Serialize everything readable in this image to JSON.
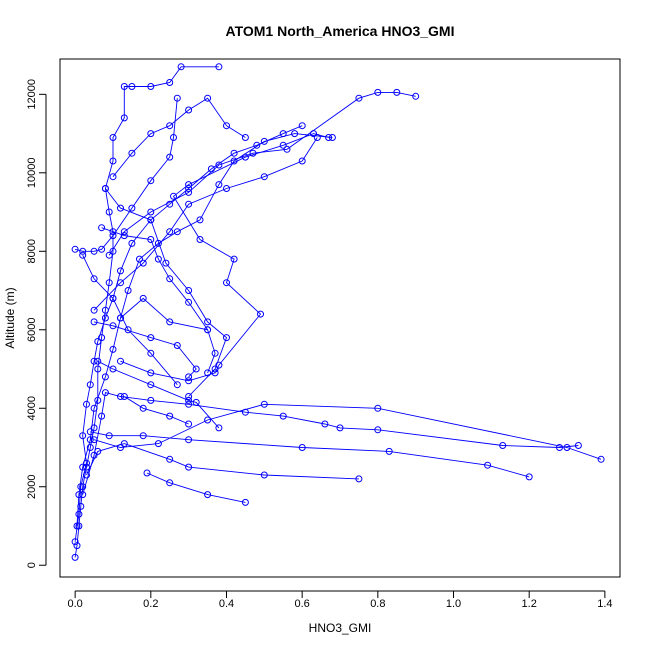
{
  "chart_data": {
    "type": "line",
    "title": "ATOM1 North_America HNO3_GMI",
    "xlabel": "HNO3_GMI",
    "ylabel": "Altitude (m)",
    "xlim": [
      -0.04,
      1.44
    ],
    "ylim": [
      -300,
      12900
    ],
    "x_ticks": [
      0.0,
      0.2,
      0.4,
      0.6,
      0.8,
      1.0,
      1.2,
      1.4
    ],
    "x_tick_labels": [
      "0.0",
      "0.2",
      "0.4",
      "0.6",
      "0.8",
      "1.0",
      "1.2",
      "1.4"
    ],
    "y_ticks": [
      0,
      2000,
      4000,
      6000,
      8000,
      10000,
      12000
    ],
    "y_tick_labels": [
      "0",
      "2000",
      "4000",
      "6000",
      "8000",
      "10000",
      "12000"
    ],
    "grid": false,
    "legend": "none",
    "colors": {
      "series": "#0000ff",
      "axis": "#000000"
    },
    "series": [
      {
        "points": [
          [
            0.0,
            200
          ],
          [
            0.005,
            500
          ],
          [
            0.01,
            1000
          ],
          [
            0.015,
            1500
          ],
          [
            0.02,
            2000
          ],
          [
            0.03,
            2500
          ],
          [
            0.04,
            3000
          ],
          [
            0.05,
            3500
          ],
          [
            0.06,
            4200
          ],
          [
            0.06,
            5000
          ],
          [
            0.07,
            5800
          ],
          [
            0.08,
            6500
          ],
          [
            0.09,
            7200
          ],
          [
            0.1,
            8000
          ],
          [
            0.1,
            8500
          ],
          [
            0.09,
            9000
          ],
          [
            0.08,
            9600
          ],
          [
            0.1,
            10300
          ],
          [
            0.1,
            10900
          ],
          [
            0.13,
            11400
          ],
          [
            0.13,
            12200
          ],
          [
            0.15,
            12200
          ],
          [
            0.2,
            12200
          ],
          [
            0.25,
            12300
          ],
          [
            0.28,
            12700
          ],
          [
            0.38,
            12700
          ]
        ]
      },
      {
        "points": [
          [
            0.005,
            1000
          ],
          [
            0.01,
            1800
          ],
          [
            0.02,
            2500
          ],
          [
            0.04,
            3200
          ],
          [
            0.05,
            4000
          ],
          [
            0.08,
            4800
          ],
          [
            0.1,
            5500
          ],
          [
            0.12,
            6300
          ],
          [
            0.14,
            7000
          ],
          [
            0.17,
            7800
          ],
          [
            0.22,
            8200
          ],
          [
            0.27,
            8500
          ],
          [
            0.33,
            8800
          ],
          [
            0.38,
            9700
          ],
          [
            0.42,
            10300
          ],
          [
            0.5,
            10800
          ],
          [
            0.58,
            11000
          ],
          [
            0.68,
            10900
          ]
        ]
      },
      {
        "points": [
          [
            0.0,
            600
          ],
          [
            0.01,
            1300
          ],
          [
            0.015,
            2000
          ],
          [
            0.03,
            2600
          ],
          [
            0.02,
            3300
          ],
          [
            0.03,
            4100
          ],
          [
            0.04,
            4600
          ],
          [
            0.05,
            5200
          ],
          [
            0.06,
            5700
          ],
          [
            0.08,
            6300
          ],
          [
            0.1,
            6800
          ],
          [
            0.12,
            7500
          ],
          [
            0.15,
            8200
          ],
          [
            0.2,
            8800
          ],
          [
            0.25,
            9200
          ],
          [
            0.3,
            9600
          ],
          [
            0.36,
            10100
          ],
          [
            0.42,
            10500
          ],
          [
            0.48,
            10700
          ],
          [
            0.55,
            11000
          ],
          [
            0.6,
            11200
          ]
        ]
      },
      {
        "points": [
          [
            0.0,
            8050
          ],
          [
            0.02,
            8000
          ],
          [
            0.05,
            8000
          ],
          [
            0.07,
            8050
          ],
          [
            0.1,
            8400
          ],
          [
            0.15,
            9100
          ],
          [
            0.2,
            9800
          ],
          [
            0.25,
            10400
          ],
          [
            0.26,
            10900
          ],
          [
            0.27,
            11900
          ]
        ]
      },
      {
        "points": [
          [
            0.02,
            1800
          ],
          [
            0.05,
            2800
          ],
          [
            0.07,
            3800
          ],
          [
            0.08,
            4400
          ],
          [
            0.12,
            4300
          ],
          [
            0.2,
            4200
          ],
          [
            0.3,
            4100
          ],
          [
            0.45,
            3900
          ],
          [
            0.55,
            3800
          ],
          [
            0.66,
            3600
          ],
          [
            0.7,
            3500
          ],
          [
            0.8,
            3450
          ],
          [
            1.13,
            3050
          ],
          [
            1.28,
            3000
          ],
          [
            1.33,
            3050
          ]
        ]
      },
      {
        "points": [
          [
            0.03,
            2300
          ],
          [
            0.06,
            2900
          ],
          [
            0.13,
            3100
          ],
          [
            0.25,
            2700
          ],
          [
            0.3,
            2500
          ],
          [
            0.5,
            2300
          ],
          [
            0.75,
            2200
          ]
        ]
      },
      {
        "points": [
          [
            0.04,
            3400
          ],
          [
            0.09,
            3300
          ],
          [
            0.18,
            3300
          ],
          [
            0.3,
            3200
          ],
          [
            0.6,
            3000
          ],
          [
            0.83,
            2900
          ],
          [
            1.09,
            2550
          ],
          [
            1.2,
            2250
          ]
        ]
      },
      {
        "points": [
          [
            0.06,
            5200
          ],
          [
            0.1,
            5000
          ],
          [
            0.2,
            4600
          ],
          [
            0.3,
            4200
          ],
          [
            0.32,
            4150
          ],
          [
            0.38,
            3500
          ]
        ]
      },
      {
        "points": [
          [
            0.05,
            6200
          ],
          [
            0.1,
            6100
          ],
          [
            0.2,
            5800
          ],
          [
            0.27,
            5600
          ],
          [
            0.32,
            5000
          ],
          [
            0.3,
            4800
          ]
        ]
      },
      {
        "points": [
          [
            0.12,
            5200
          ],
          [
            0.2,
            4900
          ],
          [
            0.3,
            4700
          ],
          [
            0.37,
            4900
          ],
          [
            0.38,
            5100
          ],
          [
            0.49,
            6400
          ],
          [
            0.4,
            7200
          ],
          [
            0.42,
            7800
          ],
          [
            0.33,
            8300
          ],
          [
            0.26,
            9400
          ],
          [
            0.3,
            9700
          ],
          [
            0.45,
            10400
          ],
          [
            0.55,
            10700
          ],
          [
            0.63,
            11000
          ],
          [
            0.67,
            10900
          ]
        ]
      },
      {
        "points": [
          [
            0.05,
            6500
          ],
          [
            0.12,
            7200
          ],
          [
            0.18,
            7700
          ],
          [
            0.25,
            8500
          ],
          [
            0.3,
            9200
          ],
          [
            0.4,
            9600
          ],
          [
            0.5,
            9900
          ],
          [
            0.6,
            10300
          ],
          [
            0.64,
            10900
          ]
        ]
      },
      {
        "points": [
          [
            0.09,
            7900
          ],
          [
            0.13,
            8500
          ],
          [
            0.2,
            9000
          ],
          [
            0.3,
            9500
          ],
          [
            0.38,
            10200
          ],
          [
            0.47,
            10500
          ],
          [
            0.56,
            10600
          ],
          [
            0.75,
            11900
          ],
          [
            0.8,
            12050
          ],
          [
            0.85,
            12050
          ],
          [
            0.9,
            11950
          ]
        ]
      },
      {
        "points": [
          [
            0.08,
            9600
          ],
          [
            0.12,
            9100
          ],
          [
            0.2,
            8800
          ],
          [
            0.24,
            7700
          ],
          [
            0.3,
            7000
          ],
          [
            0.35,
            6200
          ],
          [
            0.4,
            5800
          ],
          [
            0.37,
            5000
          ],
          [
            0.3,
            4300
          ]
        ]
      },
      {
        "points": [
          [
            0.02,
            7900
          ],
          [
            0.05,
            7300
          ],
          [
            0.1,
            6800
          ],
          [
            0.14,
            6000
          ],
          [
            0.2,
            5400
          ],
          [
            0.27,
            4600
          ]
        ]
      },
      {
        "points": [
          [
            0.12,
            6300
          ],
          [
            0.18,
            6800
          ],
          [
            0.25,
            6200
          ],
          [
            0.35,
            6000
          ],
          [
            0.37,
            5400
          ],
          [
            0.35,
            4900
          ]
        ]
      },
      {
        "points": [
          [
            0.13,
            4300
          ],
          [
            0.18,
            4000
          ],
          [
            0.25,
            3800
          ],
          [
            0.3,
            3600
          ]
        ]
      },
      {
        "points": [
          [
            0.19,
            2350
          ],
          [
            0.25,
            2100
          ],
          [
            0.35,
            1800
          ],
          [
            0.45,
            1600
          ]
        ]
      },
      {
        "points": [
          [
            0.05,
            3200
          ],
          [
            0.12,
            3000
          ],
          [
            0.22,
            3100
          ],
          [
            0.35,
            3700
          ],
          [
            0.5,
            4100
          ],
          [
            0.8,
            4000
          ],
          [
            1.3,
            3000
          ],
          [
            1.39,
            2700
          ]
        ]
      },
      {
        "points": [
          [
            0.1,
            9900
          ],
          [
            0.15,
            10500
          ],
          [
            0.2,
            11000
          ],
          [
            0.25,
            11200
          ],
          [
            0.3,
            11600
          ],
          [
            0.35,
            11900
          ],
          [
            0.4,
            11200
          ],
          [
            0.45,
            10900
          ]
        ]
      },
      {
        "points": [
          [
            0.07,
            8600
          ],
          [
            0.13,
            8400
          ],
          [
            0.2,
            8300
          ],
          [
            0.22,
            7800
          ],
          [
            0.25,
            7300
          ],
          [
            0.3,
            6700
          ],
          [
            0.35,
            6000
          ]
        ]
      }
    ]
  }
}
